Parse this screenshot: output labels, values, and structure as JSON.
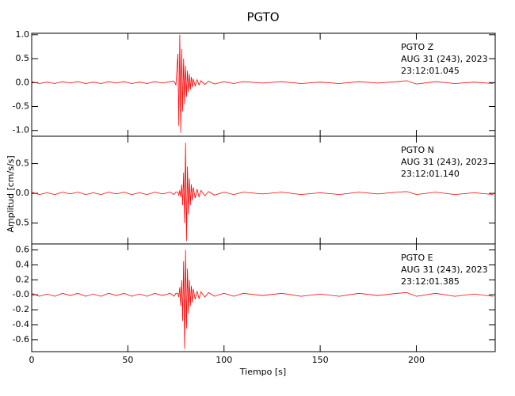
{
  "chart_data": [
    {
      "type": "line",
      "title": "PGTO",
      "annotations": [
        "PGTO   Z",
        "AUG 31 (243), 2023",
        "23:12:01.045"
      ],
      "x": [
        0,
        4,
        8,
        12,
        16,
        20,
        24,
        28,
        32,
        36,
        40,
        44,
        48,
        52,
        56,
        60,
        64,
        68,
        72,
        74,
        75,
        76,
        76.5,
        77,
        77.5,
        78,
        78.5,
        79,
        79.5,
        80,
        80.5,
        81,
        81.5,
        82,
        82.5,
        83,
        83.5,
        84,
        85,
        86,
        87,
        88,
        90,
        92,
        95,
        100,
        105,
        110,
        120,
        130,
        140,
        150,
        160,
        170,
        180,
        190,
        195,
        200,
        210,
        220,
        230,
        240
      ],
      "values": [
        0.02,
        -0.02,
        0.01,
        -0.02,
        0.02,
        -0.01,
        0.02,
        -0.02,
        0.01,
        -0.02,
        0.02,
        -0.01,
        0.02,
        -0.02,
        0.01,
        -0.02,
        0.02,
        -0.01,
        0.02,
        0.03,
        -0.05,
        0.6,
        -0.9,
        1.0,
        -1.05,
        0.7,
        -0.6,
        0.5,
        -0.45,
        0.35,
        -0.3,
        0.25,
        -0.2,
        0.18,
        -0.15,
        0.12,
        -0.1,
        0.08,
        -0.07,
        0.06,
        -0.05,
        0.04,
        -0.04,
        0.03,
        -0.03,
        0.02,
        -0.02,
        0.02,
        -0.01,
        0.02,
        -0.02,
        0.01,
        -0.02,
        0.02,
        -0.01,
        0.02,
        0.04,
        -0.03,
        0.02,
        -0.02,
        0.01,
        -0.02
      ],
      "color": "#ff0000",
      "xlim": [
        0,
        241
      ],
      "xticks": [
        0,
        50,
        100,
        150,
        200
      ],
      "ylim": [
        -1.12,
        1.03
      ],
      "yticks": [
        {
          "value": -1.0,
          "label": "-1.0"
        },
        {
          "value": -0.5,
          "label": "-0.5"
        },
        {
          "value": 0.0,
          "label": "0.0"
        },
        {
          "value": 0.5,
          "label": "0.5"
        },
        {
          "value": 1.0,
          "label": "1.0"
        }
      ]
    },
    {
      "type": "line",
      "y_label": "Amplitud [cm/s/s]",
      "annotations": [
        "PGTO   N",
        "AUG 31 (243), 2023",
        "23:12:01.140"
      ],
      "x": [
        0,
        4,
        8,
        12,
        16,
        20,
        24,
        28,
        32,
        36,
        40,
        44,
        48,
        52,
        56,
        60,
        64,
        68,
        72,
        74,
        75,
        76,
        76.5,
        77,
        77.5,
        78,
        78.5,
        79,
        79.5,
        80,
        80.5,
        81,
        81.5,
        82,
        82.5,
        83,
        83.5,
        84,
        85,
        86,
        87,
        88,
        90,
        92,
        95,
        100,
        105,
        110,
        120,
        130,
        140,
        150,
        160,
        170,
        180,
        190,
        195,
        200,
        210,
        220,
        230,
        240
      ],
      "values": [
        0.02,
        -0.02,
        0.01,
        -0.02,
        0.02,
        -0.01,
        0.02,
        -0.02,
        0.01,
        -0.02,
        0.02,
        -0.01,
        0.02,
        -0.02,
        0.01,
        -0.02,
        0.02,
        -0.01,
        0.02,
        -0.02,
        0.02,
        0.02,
        -0.03,
        0.05,
        -0.06,
        0.15,
        -0.2,
        0.35,
        -0.5,
        0.85,
        -0.8,
        0.45,
        -0.35,
        0.25,
        -0.2,
        0.15,
        -0.12,
        0.1,
        -0.08,
        0.07,
        -0.06,
        0.05,
        -0.04,
        0.03,
        -0.03,
        0.02,
        -0.02,
        0.02,
        -0.01,
        0.02,
        -0.02,
        0.01,
        -0.02,
        0.02,
        -0.01,
        0.02,
        0.03,
        -0.02,
        0.02,
        -0.02,
        0.01,
        -0.02
      ],
      "color": "#ff0000",
      "xlim": [
        0,
        241
      ],
      "xticks": [
        0,
        50,
        100,
        150,
        200
      ],
      "ylim": [
        -0.85,
        0.96
      ],
      "yticks": [
        {
          "value": -0.5,
          "label": "-0.5"
        },
        {
          "value": 0.0,
          "label": "0.0"
        },
        {
          "value": 0.5,
          "label": "0.5"
        }
      ]
    },
    {
      "type": "line",
      "x_label": "Tiempo [s]",
      "annotations": [
        "PGTO   E",
        "AUG 31 (243), 2023",
        "23:12:01.385"
      ],
      "x": [
        0,
        4,
        8,
        12,
        16,
        20,
        24,
        28,
        32,
        36,
        40,
        44,
        48,
        52,
        56,
        60,
        64,
        68,
        72,
        74,
        75,
        76,
        76.5,
        77,
        77.5,
        78,
        78.5,
        79,
        79.5,
        80,
        80.5,
        81,
        81.5,
        82,
        82.5,
        83,
        83.5,
        84,
        85,
        86,
        87,
        88,
        90,
        92,
        95,
        100,
        105,
        110,
        120,
        130,
        140,
        150,
        160,
        170,
        180,
        190,
        195,
        200,
        210,
        220,
        230,
        240
      ],
      "values": [
        0.02,
        -0.02,
        0.01,
        -0.02,
        0.02,
        -0.01,
        0.02,
        -0.02,
        0.01,
        -0.02,
        0.02,
        -0.01,
        0.02,
        -0.02,
        0.01,
        -0.02,
        0.02,
        -0.01,
        0.02,
        -0.02,
        0.02,
        0.02,
        -0.03,
        0.1,
        -0.15,
        0.2,
        -0.35,
        0.45,
        -0.72,
        0.6,
        -0.45,
        0.35,
        -0.25,
        0.2,
        -0.15,
        0.12,
        -0.1,
        0.08,
        -0.06,
        0.05,
        -0.05,
        0.04,
        -0.03,
        0.03,
        -0.02,
        0.02,
        -0.02,
        0.02,
        -0.01,
        0.02,
        -0.02,
        0.01,
        -0.02,
        0.02,
        -0.01,
        0.02,
        0.03,
        -0.02,
        0.02,
        -0.02,
        0.01,
        -0.02
      ],
      "color": "#ff0000",
      "xlim": [
        0,
        241
      ],
      "xticks": [
        0,
        50,
        100,
        150,
        200
      ],
      "ylim": [
        -0.76,
        0.68
      ],
      "yticks": [
        {
          "value": -0.6,
          "label": "-0.6"
        },
        {
          "value": -0.4,
          "label": "-0.4"
        },
        {
          "value": -0.2,
          "label": "-0.2"
        },
        {
          "value": 0.0,
          "label": "-0.0"
        },
        {
          "value": 0.2,
          "label": "0.2"
        },
        {
          "value": 0.4,
          "label": "0.4"
        },
        {
          "value": 0.6,
          "label": "0.6"
        }
      ]
    }
  ]
}
